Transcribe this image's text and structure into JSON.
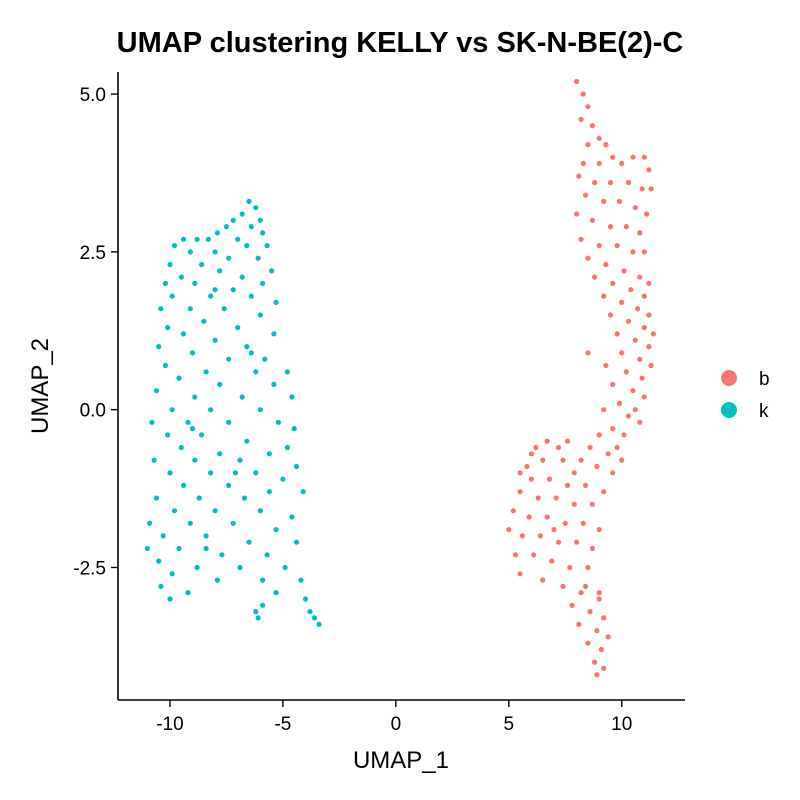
{
  "chart_data": {
    "type": "scatter",
    "title": "UMAP clustering KELLY vs SK-N-BE(2)-C",
    "xlabel": "UMAP_1",
    "ylabel": "UMAP_2",
    "xlim": [
      -12.3,
      12.8
    ],
    "ylim": [
      -4.6,
      5.35
    ],
    "xticks": [
      -10,
      -5,
      0,
      5,
      10
    ],
    "xtick_labels": [
      "-10",
      "-5",
      "0",
      "5",
      "10"
    ],
    "yticks": [
      -2.5,
      0.0,
      2.5,
      5.0
    ],
    "ytick_labels": [
      "-2.5",
      "0.0",
      "2.5",
      "5.0"
    ],
    "grid": false,
    "legend_position": "right",
    "legend": [
      {
        "label": "b",
        "color": "#F8766D"
      },
      {
        "label": "k",
        "color": "#00BFC4"
      }
    ],
    "series": [
      {
        "name": "b",
        "color": "#F8766D",
        "points": [
          [
            8.0,
            5.2
          ],
          [
            8.3,
            5.0
          ],
          [
            8.5,
            4.8
          ],
          [
            8.2,
            4.6
          ],
          [
            8.7,
            4.5
          ],
          [
            9.0,
            4.3
          ],
          [
            8.5,
            4.2
          ],
          [
            9.3,
            4.2
          ],
          [
            9.6,
            4.0
          ],
          [
            8.3,
            3.9
          ],
          [
            9.0,
            3.9
          ],
          [
            10.0,
            3.9
          ],
          [
            10.5,
            4.0
          ],
          [
            11.0,
            4.0
          ],
          [
            11.2,
            3.8
          ],
          [
            8.1,
            3.7
          ],
          [
            8.8,
            3.6
          ],
          [
            9.5,
            3.6
          ],
          [
            10.3,
            3.6
          ],
          [
            10.9,
            3.5
          ],
          [
            11.3,
            3.5
          ],
          [
            8.4,
            3.4
          ],
          [
            9.2,
            3.3
          ],
          [
            9.9,
            3.3
          ],
          [
            10.6,
            3.2
          ],
          [
            11.1,
            3.1
          ],
          [
            8.0,
            3.1
          ],
          [
            8.7,
            3.0
          ],
          [
            9.5,
            2.9
          ],
          [
            10.2,
            2.9
          ],
          [
            10.8,
            2.8
          ],
          [
            8.2,
            2.7
          ],
          [
            9.0,
            2.6
          ],
          [
            9.8,
            2.6
          ],
          [
            10.5,
            2.5
          ],
          [
            11.0,
            2.5
          ],
          [
            8.5,
            2.4
          ],
          [
            9.3,
            2.3
          ],
          [
            10.1,
            2.2
          ],
          [
            10.8,
            2.1
          ],
          [
            11.2,
            2.0
          ],
          [
            8.8,
            2.1
          ],
          [
            9.6,
            2.0
          ],
          [
            10.4,
            1.9
          ],
          [
            11.0,
            1.8
          ],
          [
            9.2,
            1.8
          ],
          [
            10.0,
            1.7
          ],
          [
            10.7,
            1.6
          ],
          [
            11.2,
            1.5
          ],
          [
            9.5,
            1.5
          ],
          [
            10.3,
            1.4
          ],
          [
            11.0,
            1.3
          ],
          [
            11.4,
            1.2
          ],
          [
            9.8,
            1.2
          ],
          [
            10.6,
            1.1
          ],
          [
            11.2,
            1.0
          ],
          [
            10.0,
            0.9
          ],
          [
            10.8,
            0.8
          ],
          [
            11.3,
            0.7
          ],
          [
            9.3,
            0.7
          ],
          [
            10.2,
            0.6
          ],
          [
            10.9,
            0.5
          ],
          [
            8.5,
            0.9
          ],
          [
            9.6,
            0.4
          ],
          [
            10.5,
            0.3
          ],
          [
            11.0,
            0.2
          ],
          [
            9.9,
            0.1
          ],
          [
            10.6,
            0.0
          ],
          [
            9.2,
            0.0
          ],
          [
            10.3,
            -0.1
          ],
          [
            10.8,
            -0.2
          ],
          [
            9.6,
            -0.3
          ],
          [
            10.1,
            -0.4
          ],
          [
            9.0,
            -0.4
          ],
          [
            9.8,
            -0.6
          ],
          [
            8.6,
            -0.6
          ],
          [
            9.4,
            -0.7
          ],
          [
            10.0,
            -0.8
          ],
          [
            8.2,
            -0.8
          ],
          [
            8.9,
            -0.9
          ],
          [
            9.6,
            -1.0
          ],
          [
            7.6,
            -0.5
          ],
          [
            7.2,
            -0.6
          ],
          [
            6.7,
            -0.5
          ],
          [
            6.2,
            -0.6
          ],
          [
            5.8,
            -0.9
          ],
          [
            6.5,
            -0.8
          ],
          [
            7.4,
            -0.8
          ],
          [
            7.9,
            -1.0
          ],
          [
            6.0,
            -1.1
          ],
          [
            6.8,
            -1.1
          ],
          [
            7.6,
            -1.2
          ],
          [
            8.4,
            -1.2
          ],
          [
            9.2,
            -1.3
          ],
          [
            5.5,
            -1.3
          ],
          [
            6.3,
            -1.4
          ],
          [
            7.1,
            -1.4
          ],
          [
            7.9,
            -1.5
          ],
          [
            8.7,
            -1.5
          ],
          [
            5.2,
            -1.6
          ],
          [
            5.9,
            -1.7
          ],
          [
            6.7,
            -1.7
          ],
          [
            7.5,
            -1.8
          ],
          [
            8.3,
            -1.8
          ],
          [
            9.0,
            -1.9
          ],
          [
            5.0,
            -1.9
          ],
          [
            5.6,
            -2.0
          ],
          [
            6.4,
            -2.0
          ],
          [
            7.2,
            -2.1
          ],
          [
            8.0,
            -2.1
          ],
          [
            8.7,
            -2.2
          ],
          [
            5.3,
            -2.3
          ],
          [
            6.1,
            -2.3
          ],
          [
            6.9,
            -2.4
          ],
          [
            7.7,
            -2.5
          ],
          [
            8.5,
            -2.5
          ],
          [
            5.5,
            -2.6
          ],
          [
            6.5,
            -2.7
          ],
          [
            7.4,
            -2.8
          ],
          [
            8.2,
            -2.9
          ],
          [
            9.0,
            -2.9
          ],
          [
            7.8,
            -3.1
          ],
          [
            8.6,
            -3.2
          ],
          [
            9.2,
            -3.3
          ],
          [
            8.1,
            -3.4
          ],
          [
            8.9,
            -3.5
          ],
          [
            9.4,
            -3.6
          ],
          [
            8.5,
            -3.7
          ],
          [
            9.1,
            -3.8
          ],
          [
            8.8,
            -4.0
          ],
          [
            9.2,
            -4.1
          ],
          [
            8.9,
            -4.2
          ],
          [
            9.0,
            -3.0
          ],
          [
            8.4,
            -2.8
          ],
          [
            7.0,
            -1.9
          ],
          [
            6.0,
            -0.7
          ],
          [
            5.5,
            -1.0
          ]
        ]
      },
      {
        "name": "k",
        "color": "#00BFC4",
        "points": [
          [
            -6.5,
            3.3
          ],
          [
            -6.2,
            3.2
          ],
          [
            -6.8,
            3.1
          ],
          [
            -7.2,
            3.0
          ],
          [
            -6.0,
            3.0
          ],
          [
            -7.5,
            2.9
          ],
          [
            -6.4,
            2.9
          ],
          [
            -7.9,
            2.8
          ],
          [
            -5.9,
            2.8
          ],
          [
            -8.3,
            2.7
          ],
          [
            -7.0,
            2.7
          ],
          [
            -8.8,
            2.7
          ],
          [
            -9.4,
            2.7
          ],
          [
            -9.8,
            2.6
          ],
          [
            -6.6,
            2.6
          ],
          [
            -5.7,
            2.6
          ],
          [
            -8.0,
            2.5
          ],
          [
            -9.1,
            2.5
          ],
          [
            -7.4,
            2.4
          ],
          [
            -6.1,
            2.4
          ],
          [
            -10.0,
            2.3
          ],
          [
            -8.6,
            2.3
          ],
          [
            -5.5,
            2.2
          ],
          [
            -7.8,
            2.2
          ],
          [
            -9.5,
            2.1
          ],
          [
            -6.8,
            2.1
          ],
          [
            -10.2,
            2.0
          ],
          [
            -8.9,
            2.0
          ],
          [
            -5.9,
            2.0
          ],
          [
            -7.2,
            1.9
          ],
          [
            -9.9,
            1.8
          ],
          [
            -8.2,
            1.8
          ],
          [
            -6.4,
            1.8
          ],
          [
            -5.3,
            1.7
          ],
          [
            -10.4,
            1.6
          ],
          [
            -9.1,
            1.6
          ],
          [
            -7.6,
            1.6
          ],
          [
            -6.0,
            1.5
          ],
          [
            -8.5,
            1.4
          ],
          [
            -10.1,
            1.3
          ],
          [
            -7.0,
            1.3
          ],
          [
            -5.4,
            1.2
          ],
          [
            -9.4,
            1.2
          ],
          [
            -8.0,
            1.1
          ],
          [
            -6.6,
            1.0
          ],
          [
            -10.5,
            1.0
          ],
          [
            -9.0,
            0.9
          ],
          [
            -7.4,
            0.8
          ],
          [
            -5.8,
            0.8
          ],
          [
            -10.2,
            0.7
          ],
          [
            -8.4,
            0.6
          ],
          [
            -6.2,
            0.6
          ],
          [
            -4.8,
            0.6
          ],
          [
            -9.6,
            0.5
          ],
          [
            -7.8,
            0.4
          ],
          [
            -5.4,
            0.4
          ],
          [
            -10.6,
            0.3
          ],
          [
            -8.9,
            0.2
          ],
          [
            -6.8,
            0.2
          ],
          [
            -4.6,
            0.2
          ],
          [
            -9.9,
            0.0
          ],
          [
            -8.2,
            0.0
          ],
          [
            -6.0,
            0.0
          ],
          [
            -10.8,
            -0.2
          ],
          [
            -9.2,
            -0.2
          ],
          [
            -7.4,
            -0.2
          ],
          [
            -5.2,
            -0.2
          ],
          [
            -4.5,
            -0.3
          ],
          [
            -10.1,
            -0.4
          ],
          [
            -8.6,
            -0.4
          ],
          [
            -6.6,
            -0.5
          ],
          [
            -4.8,
            -0.6
          ],
          [
            -9.5,
            -0.6
          ],
          [
            -7.8,
            -0.7
          ],
          [
            -5.6,
            -0.7
          ],
          [
            -10.7,
            -0.8
          ],
          [
            -8.9,
            -0.8
          ],
          [
            -6.9,
            -0.8
          ],
          [
            -4.4,
            -0.9
          ],
          [
            -10.0,
            -1.0
          ],
          [
            -8.2,
            -1.0
          ],
          [
            -6.2,
            -1.0
          ],
          [
            -5.0,
            -1.1
          ],
          [
            -9.4,
            -1.2
          ],
          [
            -7.4,
            -1.2
          ],
          [
            -5.6,
            -1.3
          ],
          [
            -4.1,
            -1.3
          ],
          [
            -10.6,
            -1.4
          ],
          [
            -8.7,
            -1.4
          ],
          [
            -6.7,
            -1.4
          ],
          [
            -9.8,
            -1.6
          ],
          [
            -8.0,
            -1.6
          ],
          [
            -6.0,
            -1.6
          ],
          [
            -4.6,
            -1.7
          ],
          [
            -10.9,
            -1.8
          ],
          [
            -9.1,
            -1.8
          ],
          [
            -7.2,
            -1.8
          ],
          [
            -5.3,
            -1.9
          ],
          [
            -10.3,
            -2.0
          ],
          [
            -8.4,
            -2.0
          ],
          [
            -6.5,
            -2.1
          ],
          [
            -4.4,
            -2.1
          ],
          [
            -11.0,
            -2.2
          ],
          [
            -9.6,
            -2.2
          ],
          [
            -7.7,
            -2.3
          ],
          [
            -5.7,
            -2.3
          ],
          [
            -10.5,
            -2.4
          ],
          [
            -8.8,
            -2.5
          ],
          [
            -6.9,
            -2.5
          ],
          [
            -4.9,
            -2.5
          ],
          [
            -9.9,
            -2.6
          ],
          [
            -7.9,
            -2.7
          ],
          [
            -5.9,
            -2.7
          ],
          [
            -4.2,
            -2.7
          ],
          [
            -10.4,
            -2.8
          ],
          [
            -9.2,
            -2.9
          ],
          [
            -5.3,
            -2.9
          ],
          [
            -4.0,
            -3.0
          ],
          [
            -10.0,
            -3.0
          ],
          [
            -3.8,
            -3.2
          ],
          [
            -6.2,
            -3.2
          ],
          [
            -3.6,
            -3.3
          ],
          [
            -6.1,
            -3.3
          ],
          [
            -3.4,
            -3.4
          ],
          [
            -5.9,
            -3.1
          ],
          [
            -8.4,
            -2.2
          ],
          [
            -7.1,
            -1.0
          ],
          [
            -9.0,
            -0.3
          ],
          [
            -6.4,
            0.9
          ],
          [
            -8.0,
            1.9
          ]
        ]
      }
    ]
  }
}
